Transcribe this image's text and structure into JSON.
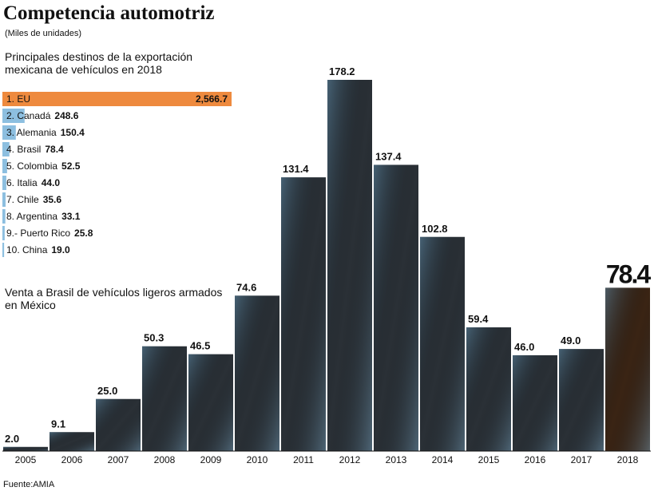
{
  "header": {
    "title": "Competencia automotriz",
    "subtitle": "(Miles de unidades)"
  },
  "source": "Fuente:AMIA",
  "chart_data": [
    {
      "type": "hbar-list",
      "title": "Principales destinos de la exportación mexicana de vehículos en 2018",
      "categories": [
        "1. EU",
        "2. Canadá",
        "3. Alemania",
        "4. Brasil",
        "5. Colombia",
        "6. Italia",
        "7. Chile",
        "8. Argentina",
        "9.- Puerto Rico",
        "10. China"
      ],
      "values": [
        2566.7,
        248.6,
        150.4,
        78.4,
        52.5,
        44.0,
        35.6,
        33.1,
        25.8,
        19.0
      ],
      "value_labels": [
        "2,566.7",
        "248.6",
        "150.4",
        "78.4",
        "52.5",
        "44.0",
        "35.6",
        "33.1",
        "25.8",
        "19.0"
      ],
      "colors": [
        "#ee8a3e",
        "#8dbfe0",
        "#8dbfe0",
        "#8dbfe0",
        "#8dbfe0",
        "#8dbfe0",
        "#8dbfe0",
        "#8dbfe0",
        "#8dbfe0",
        "#8dbfe0"
      ]
    },
    {
      "type": "bar",
      "title": "Venta a Brasil de vehículos ligeros armados en México",
      "categories": [
        "2005",
        "2006",
        "2007",
        "2008",
        "2009",
        "2010",
        "2011",
        "2012",
        "2013",
        "2014",
        "2015",
        "2016",
        "2017",
        "2018"
      ],
      "values": [
        2.0,
        9.1,
        25.0,
        50.3,
        46.5,
        74.6,
        131.4,
        178.2,
        137.4,
        102.8,
        59.4,
        46.0,
        49.0,
        78.4
      ],
      "value_labels": [
        "2.0",
        "9.1",
        "25.0",
        "50.3",
        "46.5",
        "74.6",
        "131.4",
        "178.2",
        "137.4",
        "102.8",
        "59.4",
        "46.0",
        "49.0",
        "78.4"
      ],
      "colors": [
        "#2a3036",
        "#2a3036",
        "#2a3036",
        "#2a3036",
        "#2a3036",
        "#2a3036",
        "#2a3036",
        "#2a3036",
        "#2a3036",
        "#2a3036",
        "#2a3036",
        "#2a3036",
        "#2a3036",
        "#3a2414"
      ]
    }
  ]
}
